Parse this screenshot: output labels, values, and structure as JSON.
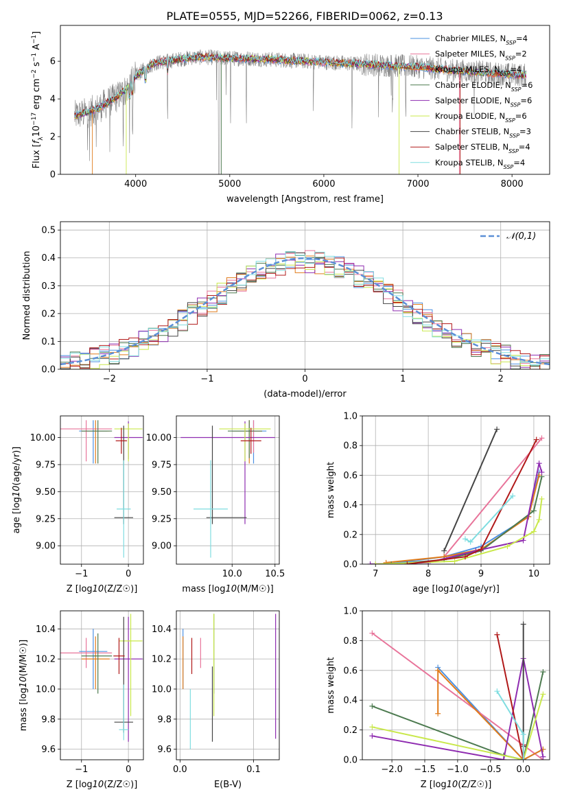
{
  "title": "PLATE=0555, MJD=52266, FIBERID=0062, z=0.13",
  "colors": {
    "Chabrier MILES": "#4a90e2",
    "Salpeter MILES": "#e8749a",
    "Kroupa MILES": "#e07b1a",
    "Chabrier ELODIE": "#4c7a4f",
    "Salpeter ELODIE": "#8e2bb0",
    "Kroupa ELODIE": "#c9e84b",
    "Chabrier STELIB": "#444444",
    "Salpeter STELIB": "#b01818",
    "Kroupa STELIB": "#7fdde0",
    "data": "#808080",
    "grid": "#b0b0b0",
    "normal": "#5b8fd6"
  },
  "chart_data": [
    {
      "type": "line",
      "title": "PLATE=0555, MJD=52266, FIBERID=0062, z=0.13",
      "xlabel": "wavelength [Angstrom, rest frame]",
      "ylabel": "Flux [f_λ 10^-17 erg cm^-2 s^-1 A^-1]",
      "xlim": [
        3200,
        8400
      ],
      "ylim": [
        0,
        7.9
      ],
      "xticks": [
        "4000",
        "5000",
        "6000",
        "7000",
        "8000"
      ],
      "yticks": [
        "0",
        "2",
        "4",
        "6"
      ],
      "grid": false,
      "legend_position": "right",
      "series": [
        {
          "name": "Chabrier MILES, N_SSP=4"
        },
        {
          "name": "Salpeter MILES, N_SSP=2"
        },
        {
          "name": "Kroupa MILES, N_SSP=4"
        },
        {
          "name": "Chabrier ELODIE, N_SSP=6"
        },
        {
          "name": "Salpeter ELODIE, N_SSP=6"
        },
        {
          "name": "Kroupa ELODIE, N_SSP=6"
        },
        {
          "name": "Chabrier STELIB, N_SSP=3"
        },
        {
          "name": "Salpeter STELIB, N_SSP=4"
        },
        {
          "name": "Kroupa STELIB, N_SSP=4"
        }
      ],
      "continuum": {
        "x": [
          3350,
          3500,
          3600,
          3700,
          3800,
          3900,
          4000,
          4100,
          4200,
          4400,
          4600,
          4800,
          5000,
          5200,
          5400,
          5600,
          5800,
          6000,
          6200,
          6400,
          6600,
          6800,
          7000,
          7200,
          7400,
          7600,
          7800,
          8000,
          8150
        ],
        "y": [
          3.1,
          3.3,
          3.5,
          3.8,
          4.1,
          4.5,
          5.2,
          5.6,
          5.9,
          6.05,
          6.2,
          6.2,
          6.15,
          6.15,
          6.1,
          6.05,
          6.0,
          5.95,
          5.9,
          5.85,
          5.8,
          5.75,
          5.7,
          5.6,
          5.5,
          5.45,
          5.35,
          5.3,
          5.25
        ]
      }
    },
    {
      "type": "histogram",
      "xlabel": "(data-model)/error",
      "ylabel": "Normed distribution",
      "xlim": [
        -2.5,
        2.5
      ],
      "ylim": [
        0,
        0.53
      ],
      "xticks": [
        "−2",
        "−1",
        "0",
        "1",
        "2"
      ],
      "yticks": [
        "0.0",
        "0.1",
        "0.2",
        "0.3",
        "0.4",
        "0.5"
      ],
      "grid": true,
      "legend": "𝒩(0,1)",
      "legend_position": "top-right",
      "bin_width": 0.1
    },
    {
      "type": "scatter",
      "xlabel": "Z [log10(Z/Z☉)]",
      "ylabel": "age [log10(age/yr)]",
      "xlim": [
        -1.45,
        0.32
      ],
      "ylim": [
        8.83,
        10.2
      ],
      "xticks": [
        "−1",
        "0"
      ],
      "yticks": [
        "9.00",
        "9.25",
        "9.50",
        "9.75",
        "10.00"
      ],
      "grid": true,
      "points": [
        {
          "model": "Chabrier MILES",
          "x": -0.75,
          "y": 10.06,
          "xerr": [
            0.3,
            0.3
          ],
          "yerr": [
            0.3,
            0.1
          ]
        },
        {
          "model": "Salpeter MILES",
          "x": -0.9,
          "y": 10.08,
          "xerr": [
            0.55,
            0.55
          ],
          "yerr": [
            0.3,
            0.08
          ]
        },
        {
          "model": "Kroupa MILES",
          "x": -0.7,
          "y": 10.06,
          "xerr": [
            0.3,
            0.3
          ],
          "yerr": [
            0.3,
            0.1
          ]
        },
        {
          "model": "Chabrier ELODIE",
          "x": -0.65,
          "y": 10.06,
          "xerr": [
            0.35,
            0.3
          ],
          "yerr": [
            0.3,
            0.1
          ]
        },
        {
          "model": "Salpeter ELODIE",
          "x": 0.0,
          "y": 10.0,
          "xerr": [
            0.3,
            0.3
          ],
          "yerr": [
            0.2,
            0.15
          ]
        },
        {
          "model": "Kroupa ELODIE",
          "x": 0.0,
          "y": 10.08,
          "xerr": [
            0.3,
            0.3
          ],
          "yerr": [
            0.3,
            0.05
          ]
        },
        {
          "model": "Chabrier STELIB",
          "x": -0.1,
          "y": 9.26,
          "xerr": [
            0.2,
            0.2
          ],
          "yerr": [
            0.06,
            0.85
          ]
        },
        {
          "model": "Salpeter STELIB",
          "x": -0.15,
          "y": 9.97,
          "xerr": [
            0.12,
            0.12
          ],
          "yerr": [
            0.12,
            0.12
          ]
        },
        {
          "model": "Kroupa STELIB",
          "x": -0.1,
          "y": 9.34,
          "xerr": [
            0.15,
            0.15
          ],
          "yerr": [
            0.45,
            0.45
          ]
        }
      ]
    },
    {
      "type": "scatter",
      "xlabel": "mass [log10(M/M☉)]",
      "xlim": [
        9.35,
        10.55
      ],
      "ylim": [
        8.83,
        10.2
      ],
      "xticks": [
        "10.0",
        "10.5"
      ],
      "yticks": [
        "9.00",
        "9.25",
        "9.50",
        "9.75",
        "10.00"
      ],
      "grid": true,
      "points": [
        {
          "model": "Chabrier MILES",
          "x": 10.25,
          "y": 10.06,
          "xerr": [
            0.25,
            0.15
          ],
          "yerr": [
            0.3,
            0.1
          ]
        },
        {
          "model": "Salpeter MILES",
          "x": 10.25,
          "y": 10.06,
          "xerr": [
            0.1,
            0.1
          ],
          "yerr": [
            0.2,
            0.1
          ]
        },
        {
          "model": "Kroupa MILES",
          "x": 10.2,
          "y": 10.06,
          "xerr": [
            0.2,
            0.15
          ],
          "yerr": [
            0.3,
            0.1
          ]
        },
        {
          "model": "Chabrier ELODIE",
          "x": 10.2,
          "y": 10.06,
          "xerr": [
            0.25,
            0.15
          ],
          "yerr": [
            0.25,
            0.1
          ]
        },
        {
          "model": "Salpeter ELODIE",
          "x": 10.15,
          "y": 10.0,
          "xerr": [
            0.75,
            0.35
          ],
          "yerr": [
            0.8,
            0.15
          ]
        },
        {
          "model": "Kroupa ELODIE",
          "x": 10.15,
          "y": 10.08,
          "xerr": [
            0.3,
            0.3
          ],
          "yerr": [
            0.3,
            0.05
          ]
        },
        {
          "model": "Chabrier STELIB",
          "x": 9.77,
          "y": 9.26,
          "xerr": [
            0.07,
            0.4
          ],
          "yerr": [
            0.06,
            0.85
          ]
        },
        {
          "model": "Salpeter STELIB",
          "x": 10.22,
          "y": 9.97,
          "xerr": [
            0.12,
            0.12
          ],
          "yerr": [
            0.12,
            0.12
          ]
        },
        {
          "model": "Kroupa STELIB",
          "x": 9.75,
          "y": 9.34,
          "xerr": [
            0.2,
            0.2
          ],
          "yerr": [
            0.45,
            0.45
          ]
        }
      ]
    },
    {
      "type": "line",
      "xlabel": "age [log10(age/yr)]",
      "ylabel": "mass weight",
      "xlim": [
        6.75,
        10.3
      ],
      "ylim": [
        0,
        1.0
      ],
      "xticks": [
        "7",
        "8",
        "9",
        "10"
      ],
      "yticks": [
        "0.0",
        "0.2",
        "0.4",
        "0.6",
        "0.8",
        "1.0"
      ],
      "grid": true,
      "series": [
        {
          "model": "Chabrier MILES",
          "x": [
            7.2,
            8.3,
            9.0,
            9.9,
            10.1
          ],
          "y": [
            0.0,
            0.05,
            0.12,
            0.32,
            0.62
          ]
        },
        {
          "model": "Salpeter MILES",
          "x": [
            8.3,
            10.15
          ],
          "y": [
            0.05,
            0.85
          ]
        },
        {
          "model": "Kroupa MILES",
          "x": [
            7.2,
            8.3,
            9.0,
            9.9,
            10.1
          ],
          "y": [
            0.01,
            0.05,
            0.1,
            0.32,
            0.6
          ]
        },
        {
          "model": "Chabrier ELODIE",
          "x": [
            7.3,
            8.3,
            9.0,
            10.0,
            10.15
          ],
          "y": [
            0.0,
            0.03,
            0.09,
            0.36,
            0.59
          ]
        },
        {
          "model": "Salpeter ELODIE",
          "x": [
            6.9,
            8.0,
            8.9,
            9.8,
            10.1,
            10.15
          ],
          "y": [
            0.0,
            0.01,
            0.09,
            0.16,
            0.68,
            0.62
          ]
        },
        {
          "model": "Kroupa ELODIE",
          "x": [
            7.0,
            8.5,
            9.5,
            10.0,
            10.1,
            10.15
          ],
          "y": [
            0.0,
            0.02,
            0.12,
            0.22,
            0.3,
            0.44
          ]
        },
        {
          "model": "Chabrier STELIB",
          "x": [
            8.3,
            9.3
          ],
          "y": [
            0.09,
            0.91
          ]
        },
        {
          "model": "Salpeter STELIB",
          "x": [
            7.6,
            8.7,
            9.0,
            10.05
          ],
          "y": [
            0.0,
            0.05,
            0.1,
            0.84
          ]
        },
        {
          "model": "Kroupa STELIB",
          "x": [
            8.7,
            8.8,
            9.6
          ],
          "y": [
            0.17,
            0.15,
            0.46
          ]
        }
      ]
    },
    {
      "type": "scatter",
      "xlabel": "Z [log10(Z/Z☉)]",
      "ylabel": "mass [log10(M/M☉)]",
      "xlim": [
        -1.45,
        0.32
      ],
      "ylim": [
        9.53,
        10.52
      ],
      "xticks": [
        "−1",
        "0"
      ],
      "yticks": [
        "9.6",
        "9.8",
        "10.0",
        "10.2",
        "10.4"
      ],
      "grid": true,
      "points": [
        {
          "model": "Chabrier MILES",
          "x": -0.75,
          "y": 10.25,
          "xerr": [
            0.3,
            0.3
          ],
          "yerr": [
            0.25,
            0.15
          ]
        },
        {
          "model": "Salpeter MILES",
          "x": -0.9,
          "y": 10.24,
          "xerr": [
            0.55,
            0.55
          ],
          "yerr": [
            0.1,
            0.1
          ]
        },
        {
          "model": "Kroupa MILES",
          "x": -0.7,
          "y": 10.2,
          "xerr": [
            0.3,
            0.3
          ],
          "yerr": [
            0.2,
            0.15
          ]
        },
        {
          "model": "Chabrier ELODIE",
          "x": -0.65,
          "y": 10.22,
          "xerr": [
            0.35,
            0.3
          ],
          "yerr": [
            0.25,
            0.15
          ]
        },
        {
          "model": "Salpeter ELODIE",
          "x": 0.0,
          "y": 10.2,
          "xerr": [
            0.3,
            0.3
          ],
          "yerr": [
            0.55,
            0.28
          ]
        },
        {
          "model": "Kroupa ELODIE",
          "x": 0.05,
          "y": 10.32,
          "xerr": [
            0.25,
            0.25
          ],
          "yerr": [
            0.5,
            0.18
          ]
        },
        {
          "model": "Chabrier STELIB",
          "x": -0.1,
          "y": 9.78,
          "xerr": [
            0.2,
            0.2
          ],
          "yerr": [
            0.07,
            0.7
          ]
        },
        {
          "model": "Salpeter STELIB",
          "x": -0.2,
          "y": 10.22,
          "xerr": [
            0.12,
            0.12
          ],
          "yerr": [
            0.12,
            0.12
          ]
        },
        {
          "model": "Kroupa STELIB",
          "x": -0.1,
          "y": 9.73,
          "xerr": [
            0.1,
            0.1
          ],
          "yerr": [
            0.07,
            0.3
          ]
        }
      ]
    },
    {
      "type": "scatter",
      "xlabel": "E(B-V)",
      "xlim": [
        -0.005,
        0.135
      ],
      "ylim": [
        9.53,
        10.52
      ],
      "xticks": [
        "0.0",
        "0.1"
      ],
      "yticks": [
        "9.6",
        "9.8",
        "10.0",
        "10.2",
        "10.4"
      ],
      "grid": true,
      "points": [
        {
          "model": "Chabrier MILES",
          "x": 0.004,
          "y": 10.25,
          "yerr": [
            0.25,
            0.15
          ]
        },
        {
          "model": "Salpeter MILES",
          "x": 0.028,
          "y": 10.24,
          "yerr": [
            0.1,
            0.1
          ]
        },
        {
          "model": "Kroupa MILES",
          "x": 0.004,
          "y": 10.2,
          "yerr": [
            0.2,
            0.15
          ]
        },
        {
          "model": "Chabrier ELODIE",
          "x": 0.046,
          "y": 10.22,
          "yerr": [
            0.25,
            0.28
          ]
        },
        {
          "model": "Salpeter ELODIE",
          "x": 0.13,
          "y": 10.2,
          "yerr": [
            0.53,
            0.3
          ]
        },
        {
          "model": "Kroupa ELODIE",
          "x": 0.046,
          "y": 10.32,
          "yerr": [
            0.5,
            0.18
          ]
        },
        {
          "model": "Chabrier STELIB",
          "x": 0.044,
          "y": 9.9,
          "yerr": [
            0.25,
            0.25
          ]
        },
        {
          "model": "Salpeter STELIB",
          "x": 0.016,
          "y": 10.22,
          "yerr": [
            0.12,
            0.12
          ]
        },
        {
          "model": "Kroupa STELIB",
          "x": 0.014,
          "y": 9.75,
          "yerr": [
            0.15,
            0.25
          ]
        }
      ]
    },
    {
      "type": "line",
      "xlabel": "Z [log10(Z/Z☉)]",
      "ylabel": "mass weight",
      "xlim": [
        -2.45,
        0.4
      ],
      "ylim": [
        0,
        1.0
      ],
      "xticks": [
        "−2.0",
        "−1.5",
        "−1.0",
        "−0.5",
        "0.0"
      ],
      "yticks": [
        "0.0",
        "0.2",
        "0.4",
        "0.6",
        "0.8",
        "1.0"
      ],
      "grid": true,
      "series": [
        {
          "model": "Chabrier MILES",
          "x": [
            -1.3,
            0.0,
            0.3
          ],
          "y": [
            0.62,
            0.0,
            0.07
          ]
        },
        {
          "model": "Salpeter MILES",
          "x": [
            -2.3,
            0.3
          ],
          "y": [
            0.85,
            0.0
          ]
        },
        {
          "model": "Kroupa MILES",
          "x": [
            -1.3,
            -1.3,
            0.0,
            0.3
          ],
          "y": [
            0.31,
            0.6,
            0.0,
            0.07
          ]
        },
        {
          "model": "Chabrier ELODIE",
          "x": [
            -2.3,
            -0.3,
            0.0,
            0.3
          ],
          "y": [
            0.36,
            0.03,
            0.0,
            0.59
          ]
        },
        {
          "model": "Salpeter ELODIE",
          "x": [
            -2.3,
            -0.3,
            0.0,
            0.3
          ],
          "y": [
            0.16,
            0.0,
            0.68,
            0.02
          ]
        },
        {
          "model": "Kroupa ELODIE",
          "x": [
            -2.3,
            0.0,
            0.3
          ],
          "y": [
            0.22,
            0.0,
            0.44
          ]
        },
        {
          "model": "Chabrier STELIB",
          "x": [
            0.0,
            0.0,
            0.0
          ],
          "y": [
            0.09,
            0.91,
            0.0
          ]
        },
        {
          "model": "Salpeter STELIB",
          "x": [
            -0.4,
            0.0,
            0.0
          ],
          "y": [
            0.84,
            0.0,
            0.1
          ]
        },
        {
          "model": "Kroupa STELIB",
          "x": [
            -0.4,
            0.0,
            0.0
          ],
          "y": [
            0.46,
            0.17,
            0.0
          ]
        }
      ]
    }
  ]
}
